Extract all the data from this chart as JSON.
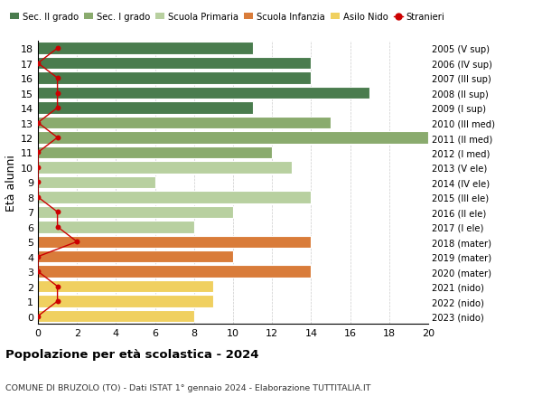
{
  "ages": [
    18,
    17,
    16,
    15,
    14,
    13,
    12,
    11,
    10,
    9,
    8,
    7,
    6,
    5,
    4,
    3,
    2,
    1,
    0
  ],
  "years": [
    "2005 (V sup)",
    "2006 (IV sup)",
    "2007 (III sup)",
    "2008 (II sup)",
    "2009 (I sup)",
    "2010 (III med)",
    "2011 (II med)",
    "2012 (I med)",
    "2013 (V ele)",
    "2014 (IV ele)",
    "2015 (III ele)",
    "2016 (II ele)",
    "2017 (I ele)",
    "2018 (mater)",
    "2019 (mater)",
    "2020 (mater)",
    "2021 (nido)",
    "2022 (nido)",
    "2023 (nido)"
  ],
  "bar_values": [
    11,
    14,
    14,
    17,
    11,
    15,
    20,
    12,
    13,
    6,
    14,
    10,
    8,
    14,
    10,
    14,
    9,
    9,
    8
  ],
  "bar_colors": [
    "#4a7c4e",
    "#4a7c4e",
    "#4a7c4e",
    "#4a7c4e",
    "#4a7c4e",
    "#8aab6e",
    "#8aab6e",
    "#8aab6e",
    "#b8d0a0",
    "#b8d0a0",
    "#b8d0a0",
    "#b8d0a0",
    "#b8d0a0",
    "#d97c3a",
    "#d97c3a",
    "#d97c3a",
    "#f0d060",
    "#f0d060",
    "#f0d060"
  ],
  "stranieri_values": [
    1,
    0,
    1,
    1,
    1,
    0,
    1,
    0,
    0,
    0,
    0,
    1,
    1,
    2,
    0,
    0,
    1,
    1,
    0
  ],
  "legend_labels": [
    "Sec. II grado",
    "Sec. I grado",
    "Scuola Primaria",
    "Scuola Infanzia",
    "Asilo Nido",
    "Stranieri"
  ],
  "legend_colors": [
    "#4a7c4e",
    "#8aab6e",
    "#b8d0a0",
    "#d97c3a",
    "#f0d060",
    "#cc2222"
  ],
  "ylabel_left": "Età alunni",
  "title": "Popolazione per età scolastica - 2024",
  "subtitle": "COMUNE DI BRUZOLO (TO) - Dati ISTAT 1° gennaio 2024 - Elaborazione TUTTITALIA.IT",
  "xlim": [
    0,
    20
  ],
  "xticks": [
    0,
    2,
    4,
    6,
    8,
    10,
    12,
    14,
    16,
    18,
    20
  ],
  "ylim": [
    -0.5,
    18.5
  ],
  "bg_color": "#ffffff",
  "grid_color": "#cccccc",
  "bar_height": 0.82
}
